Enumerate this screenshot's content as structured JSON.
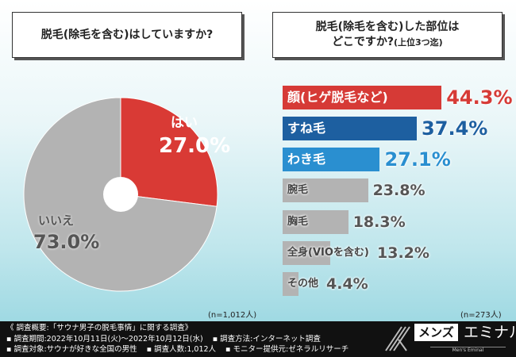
{
  "left": {
    "question": "脱毛(除毛を含む)はしていますか?",
    "n": "(n=1,012人)"
  },
  "right": {
    "question_line1": "脱毛(除毛を含む)した部位は",
    "question_line2": "どこですか?",
    "question_suffix": "(上位3つ迄)",
    "n": "(n=273人)"
  },
  "chart_data": [
    {
      "type": "pie",
      "title": "脱毛(除毛を含む)はしていますか?",
      "slices": [
        {
          "label": "はい",
          "value": 27.0,
          "display": "27.0%",
          "color": "#d93a35"
        },
        {
          "label": "いいえ",
          "value": 73.0,
          "display": "73.0%",
          "color": "#b3b3b3"
        }
      ]
    },
    {
      "type": "bar",
      "orientation": "horizontal",
      "title": "脱毛(除毛を含む)した部位はどこですか?(上位3つ迄)",
      "categories": [
        "顔(ヒゲ脱毛など)",
        "すね毛",
        "わき毛",
        "腕毛",
        "胸毛",
        "全身(VIOを含む)",
        "その他"
      ],
      "values": [
        44.3,
        37.4,
        27.1,
        23.8,
        18.3,
        13.2,
        4.4
      ],
      "display": [
        "44.3%",
        "37.4%",
        "27.1%",
        "23.8%",
        "18.3%",
        "13.2%",
        "4.4%"
      ],
      "colors": [
        "#d63a36",
        "#1d5fa0",
        "#2a8fd0",
        "#b3b3b3",
        "#b3b3b3",
        "#b3b3b3",
        "#b3b3b3"
      ],
      "value_colors": [
        "#d63a36",
        "#1d5fa0",
        "#2a8fd0",
        "#555555",
        "#555555",
        "#555555",
        "#555555"
      ]
    }
  ],
  "footer": {
    "title": "《 調査概要:「サウナ男子の脱毛事情」に関する調査》",
    "line1a": "▪ 調査期間:2022年10月11日(火)〜2022年10月12日(水)",
    "line1b": "▪ 調査方法:インターネット調査",
    "line2a": "▪ 調査対象:サウナが好きな全国の男性",
    "line2b": "▪ 調査人数:1,012人",
    "line2c": "▪ モニター提供元:ゼネラルリサーチ"
  },
  "logo": {
    "box": "メンズ",
    "text": "エミナル",
    "sub": "Men's Eminal"
  }
}
